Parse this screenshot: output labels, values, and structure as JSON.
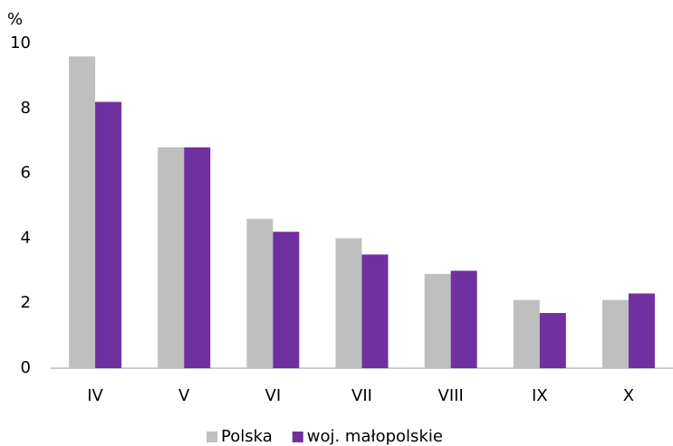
{
  "chart_data": {
    "type": "bar",
    "y_label": "%",
    "categories": [
      "IV",
      "V",
      "VI",
      "VII",
      "VIII",
      "IX",
      "X"
    ],
    "series": [
      {
        "name": "Polska",
        "color": "#bfbfbf",
        "values": [
          9.6,
          6.8,
          4.6,
          4.0,
          2.9,
          2.1,
          2.1
        ]
      },
      {
        "name": "woj. małopolskie",
        "color": "#7030a0",
        "values": [
          8.2,
          6.8,
          4.2,
          3.5,
          3.0,
          1.7,
          2.3
        ]
      }
    ],
    "ylim": [
      0,
      10
    ],
    "yticks": [
      0,
      2,
      4,
      6,
      8,
      10
    ],
    "grid": false,
    "legend": "bottom"
  }
}
